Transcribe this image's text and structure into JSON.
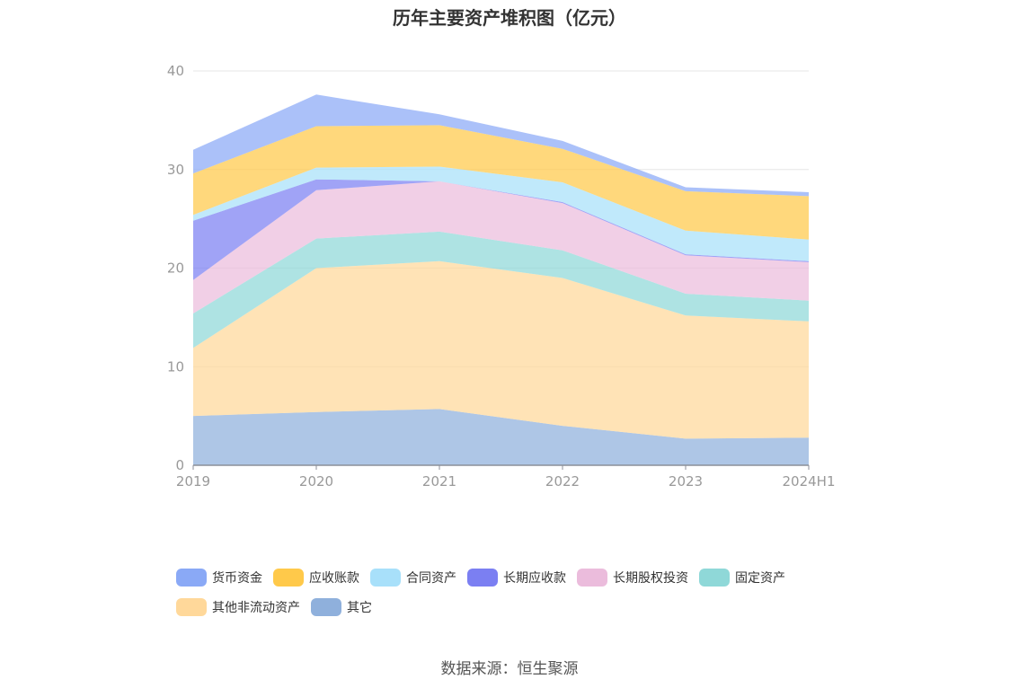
{
  "chart_data": {
    "type": "area",
    "stacked": true,
    "title": "历年主要资产堆积图（亿元）",
    "x": [
      "2019",
      "2020",
      "2021",
      "2022",
      "2023",
      "2024H1"
    ],
    "ylim": [
      0,
      40
    ],
    "yticks": [
      "0",
      "10",
      "20",
      "30",
      "40"
    ],
    "grid": true,
    "legend_position": "bottom",
    "series": [
      {
        "name": "其它",
        "color": "#8fb0dc",
        "values": [
          5.0,
          5.4,
          5.7,
          4.0,
          2.7,
          2.8
        ]
      },
      {
        "name": "其他非流动资产",
        "color": "#ffd89a",
        "values": [
          6.9,
          14.6,
          15.0,
          15.0,
          12.5,
          11.8
        ]
      },
      {
        "name": "固定资产",
        "color": "#8fd8d8",
        "values": [
          3.5,
          3.0,
          3.0,
          2.8,
          2.2,
          2.1
        ]
      },
      {
        "name": "长期股权投资",
        "color": "#ebbcdc",
        "values": [
          3.4,
          4.9,
          5.1,
          4.8,
          3.9,
          3.9
        ]
      },
      {
        "name": "长期应收款",
        "color": "#7b7ff2",
        "values": [
          6.0,
          1.1,
          0.0,
          0.1,
          0.1,
          0.1
        ]
      },
      {
        "name": "合同资产",
        "color": "#a8e0fa",
        "values": [
          0.6,
          1.2,
          1.5,
          2.0,
          2.4,
          2.2
        ]
      },
      {
        "name": "应收账款",
        "color": "#ffc94a",
        "values": [
          4.2,
          4.2,
          4.2,
          3.4,
          4.0,
          4.4
        ]
      },
      {
        "name": "货币资金",
        "color": "#8aa9f6",
        "values": [
          2.4,
          3.2,
          1.1,
          0.8,
          0.4,
          0.4
        ]
      }
    ]
  },
  "legend": [
    {
      "label": "货币资金",
      "color": "#8aa9f6"
    },
    {
      "label": "应收账款",
      "color": "#ffc94a"
    },
    {
      "label": "合同资产",
      "color": "#a8e0fa"
    },
    {
      "label": "长期应收款",
      "color": "#7b7ff2"
    },
    {
      "label": "长期股权投资",
      "color": "#ebbcdc"
    },
    {
      "label": "固定资产",
      "color": "#8fd8d8"
    },
    {
      "label": "其他非流动资产",
      "color": "#ffd89a"
    },
    {
      "label": "其它",
      "color": "#8fb0dc"
    }
  ],
  "source_note": "数据来源：恒生聚源"
}
